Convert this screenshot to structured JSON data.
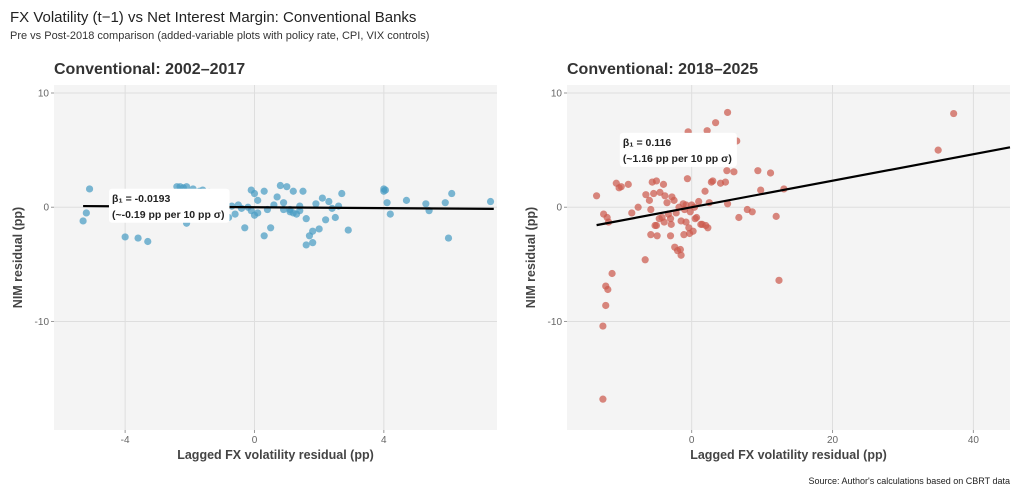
{
  "figure": {
    "title": "FX Volatility (t−1) vs Net Interest Margin: Conventional Banks",
    "subtitle": "Pre vs Post-2018 comparison (added-variable plots with policy rate, CPI, VIX controls)",
    "caption": "Source: Author's calculations based on CBRT data"
  },
  "chart_data": [
    {
      "type": "scatter",
      "title": "Conventional: 2002–2017",
      "xlabel": "Lagged FX volatility residual (pp)",
      "ylabel": "NIM residual (pp)",
      "xlim": [
        -6.2,
        7.5
      ],
      "ylim": [
        -19.5,
        10.7
      ],
      "xticks": [
        -4,
        0,
        4
      ],
      "xtick_labels": [
        "-4",
        "0",
        "4"
      ],
      "yticks": [
        -10,
        0,
        10
      ],
      "ytick_labels": [
        "-10",
        "0",
        "10"
      ],
      "grid": true,
      "point_color": "#4a9cc4",
      "fit": {
        "slope": -0.0193,
        "intercept": 0.0,
        "x_range": [
          -5.3,
          7.4
        ],
        "color": "#000000"
      },
      "annotation": {
        "line1": "β₁ = -0.0193",
        "line2": "(~-0.19 pp per 10 pp σ)",
        "x": -4.5,
        "y": 0.3
      },
      "points": [
        [
          -5.1,
          1.6
        ],
        [
          -5.2,
          -0.5
        ],
        [
          -5.3,
          -1.2
        ],
        [
          -4.0,
          -2.6
        ],
        [
          -3.6,
          -2.7
        ],
        [
          -3.3,
          -3.0
        ],
        [
          -2.4,
          1.8
        ],
        [
          -2.3,
          1.8
        ],
        [
          -2.2,
          1.7
        ],
        [
          -2.1,
          1.8
        ],
        [
          -1.6,
          1.5
        ],
        [
          -1.4,
          1.3
        ],
        [
          -2.1,
          -1.4
        ],
        [
          -1.7,
          1.4
        ],
        [
          -1.1,
          1.1
        ],
        [
          -0.9,
          0.6
        ],
        [
          -0.7,
          0.1
        ],
        [
          -0.6,
          -0.6
        ],
        [
          -0.8,
          -0.9
        ],
        [
          -0.5,
          0.2
        ],
        [
          -0.4,
          -0.1
        ],
        [
          -0.2,
          0.0
        ],
        [
          -0.3,
          -1.8
        ],
        [
          -0.1,
          1.5
        ],
        [
          0.0,
          1.2
        ],
        [
          0.3,
          1.4
        ],
        [
          0.1,
          0.6
        ],
        [
          -0.1,
          -0.3
        ],
        [
          0.0,
          -0.7
        ],
        [
          0.1,
          -0.5
        ],
        [
          0.3,
          -2.5
        ],
        [
          0.5,
          -1.8
        ],
        [
          0.6,
          0.2
        ],
        [
          0.8,
          1.9
        ],
        [
          1.0,
          1.8
        ],
        [
          1.2,
          1.4
        ],
        [
          0.9,
          0.4
        ],
        [
          1.1,
          -0.2
        ],
        [
          1.2,
          -0.5
        ],
        [
          1.3,
          -0.6
        ],
        [
          1.4,
          0.1
        ],
        [
          1.6,
          -1.0
        ],
        [
          1.7,
          -2.5
        ],
        [
          1.8,
          -2.1
        ],
        [
          2.0,
          -1.9
        ],
        [
          1.1,
          -0.4
        ],
        [
          0.9,
          -0.2
        ],
        [
          1.5,
          1.4
        ],
        [
          1.9,
          0.3
        ],
        [
          2.3,
          0.5
        ],
        [
          2.5,
          -0.9
        ],
        [
          2.7,
          1.2
        ],
        [
          2.9,
          -2.0
        ],
        [
          1.6,
          -3.3
        ],
        [
          1.8,
          -3.1
        ],
        [
          2.2,
          -1.1
        ],
        [
          2.4,
          -0.1
        ],
        [
          2.6,
          0.1
        ],
        [
          1.4,
          -0.3
        ],
        [
          0.7,
          0.9
        ],
        [
          -1.9,
          1.6
        ],
        [
          -1.2,
          -0.2
        ],
        [
          -1.5,
          0.9
        ],
        [
          0.4,
          -0.2
        ],
        [
          2.1,
          0.8
        ],
        [
          4.0,
          1.6
        ],
        [
          4.05,
          1.5
        ],
        [
          4.1,
          0.4
        ],
        [
          4.2,
          -0.6
        ],
        [
          4.7,
          0.6
        ],
        [
          5.3,
          0.3
        ],
        [
          5.4,
          -0.3
        ],
        [
          5.9,
          0.4
        ],
        [
          6.1,
          1.2
        ],
        [
          6.0,
          -2.7
        ],
        [
          7.3,
          0.5
        ],
        [
          4.0,
          1.4
        ]
      ]
    },
    {
      "type": "scatter",
      "title": "Conventional: 2018–2025",
      "xlabel": "Lagged FX volatility residual (pp)",
      "ylabel": "NIM residual (pp)",
      "xlim": [
        -17.7,
        45.2
      ],
      "ylim": [
        -19.5,
        10.7
      ],
      "xticks": [
        0,
        20,
        40
      ],
      "xtick_labels": [
        "0",
        "20",
        "40"
      ],
      "yticks": [
        -10,
        0,
        10
      ],
      "ytick_labels": [
        "-10",
        "0",
        "10"
      ],
      "grid": true,
      "point_color": "#cc5a4e",
      "fit": {
        "slope": 0.116,
        "intercept": 0.0,
        "x_range": [
          -13.5,
          45.2
        ],
        "color": "#000000"
      },
      "annotation": {
        "line1": "β₁ = 0.116",
        "line2": "(~1.16 pp per 10 pp σ)",
        "x": -10.2,
        "y": 5.2
      },
      "points": [
        [
          -13.5,
          1.0
        ],
        [
          -12.5,
          -0.6
        ],
        [
          -12.0,
          -0.9
        ],
        [
          -11.8,
          -1.3
        ],
        [
          -10.7,
          2.1
        ],
        [
          -10.3,
          1.7
        ],
        [
          -10.0,
          1.8
        ],
        [
          -9.0,
          2.0
        ],
        [
          -8.5,
          -0.5
        ],
        [
          -7.6,
          0.0
        ],
        [
          -6.5,
          1.1
        ],
        [
          -6.0,
          0.6
        ],
        [
          -5.6,
          2.2
        ],
        [
          -5.4,
          1.2
        ],
        [
          -5.2,
          -1.6
        ],
        [
          -5.0,
          2.3
        ],
        [
          -4.5,
          1.3
        ],
        [
          -4.0,
          2.0
        ],
        [
          -3.8,
          1.0
        ],
        [
          -3.5,
          0.4
        ],
        [
          -3.3,
          -0.6
        ],
        [
          -3.0,
          -1.0
        ],
        [
          -2.8,
          0.9
        ],
        [
          -2.5,
          0.6
        ],
        [
          -2.2,
          -0.5
        ],
        [
          -1.8,
          0.0
        ],
        [
          -1.5,
          -1.2
        ],
        [
          -1.2,
          0.3
        ],
        [
          -1.0,
          -0.2
        ],
        [
          -0.8,
          0.2
        ],
        [
          -0.6,
          2.5
        ],
        [
          -0.4,
          -1.8
        ],
        [
          -0.2,
          -0.4
        ],
        [
          0.0,
          0.2
        ],
        [
          0.4,
          0.0
        ],
        [
          0.7,
          -0.9
        ],
        [
          -5.8,
          -0.2
        ],
        [
          -5.0,
          -1.6
        ],
        [
          -4.6,
          -1.0
        ],
        [
          -4.2,
          -0.9
        ],
        [
          -3.9,
          -1.3
        ],
        [
          -2.9,
          -1.5
        ],
        [
          -2.4,
          -3.5
        ],
        [
          -2.0,
          -3.8
        ],
        [
          -1.6,
          -3.7
        ],
        [
          -1.1,
          -2.4
        ],
        [
          -0.3,
          -2.3
        ],
        [
          0.2,
          -2.1
        ],
        [
          -6.6,
          -4.6
        ],
        [
          -5.8,
          -2.4
        ],
        [
          -4.9,
          -2.5
        ],
        [
          -3.0,
          -2.5
        ],
        [
          -1.5,
          -4.2
        ],
        [
          -0.8,
          -1.3
        ],
        [
          0.5,
          -1.0
        ],
        [
          1.0,
          0.5
        ],
        [
          1.3,
          -1.5
        ],
        [
          1.5,
          -1.5
        ],
        [
          2.0,
          -1.6
        ],
        [
          2.3,
          -1.8
        ],
        [
          2.8,
          2.2
        ],
        [
          2.5,
          0.4
        ],
        [
          3.0,
          2.3
        ],
        [
          1.9,
          1.4
        ],
        [
          4.1,
          2.1
        ],
        [
          5.0,
          3.2
        ],
        [
          4.8,
          2.2
        ],
        [
          5.1,
          0.3
        ],
        [
          6.0,
          3.1
        ],
        [
          6.7,
          -0.9
        ],
        [
          7.9,
          -0.2
        ],
        [
          8.6,
          -0.4
        ],
        [
          9.4,
          3.2
        ],
        [
          9.8,
          1.5
        ],
        [
          11.2,
          3.0
        ],
        [
          12.0,
          -0.8
        ],
        [
          13.1,
          1.6
        ],
        [
          12.4,
          -6.4
        ],
        [
          3.4,
          7.4
        ],
        [
          5.1,
          8.3
        ],
        [
          2.2,
          6.7
        ],
        [
          -0.5,
          6.6
        ],
        [
          6.4,
          5.8
        ],
        [
          -3.5,
          4.0
        ],
        [
          -11.3,
          -5.8
        ],
        [
          -12.2,
          -6.9
        ],
        [
          -11.9,
          -7.2
        ],
        [
          -12.2,
          -8.6
        ],
        [
          -12.6,
          -10.4
        ],
        [
          -12.6,
          -16.8
        ],
        [
          35.0,
          5.0
        ],
        [
          37.2,
          8.2
        ]
      ]
    }
  ]
}
